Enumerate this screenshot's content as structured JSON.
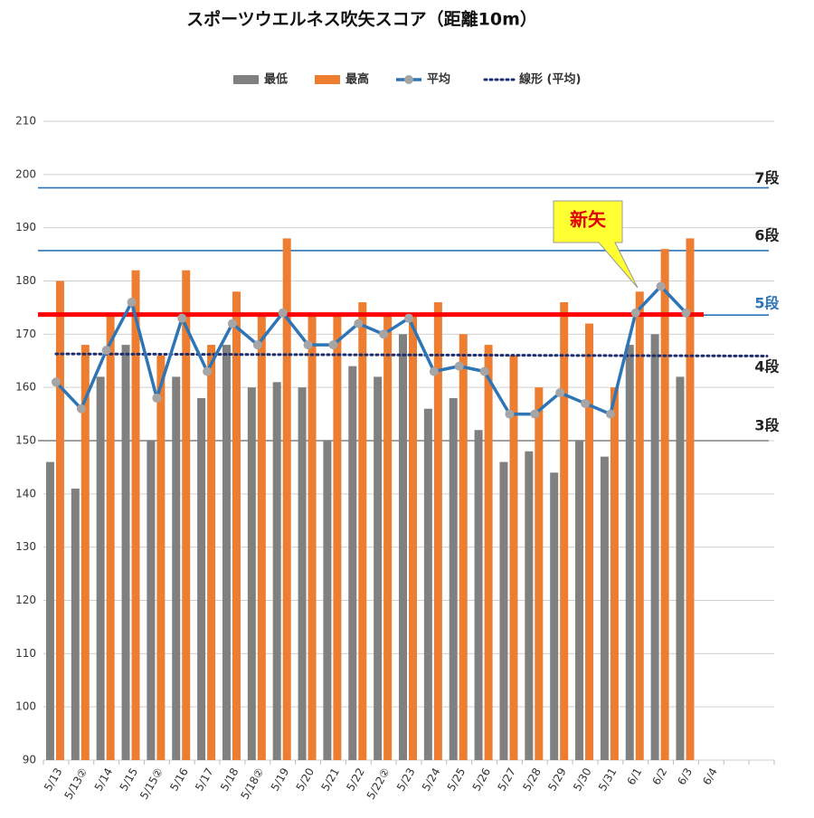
{
  "chart_data": {
    "type": "bar_line",
    "title": "スポーツウエルネス吹矢スコア（距離10m）",
    "categories": [
      "5/13",
      "5/13②",
      "5/14",
      "5/15",
      "5/15②",
      "5/16",
      "5/17",
      "5/18",
      "5/18②",
      "5/19",
      "5/20",
      "5/21",
      "5/22",
      "5/22②",
      "5/23",
      "5/24",
      "5/25",
      "5/26",
      "5/27",
      "5/28",
      "5/29",
      "5/30",
      "5/31",
      "6/1",
      "6/2",
      "6/3",
      "6/4",
      null,
      null
    ],
    "series": [
      {
        "name": "最低",
        "kind": "bar",
        "color": "#808080",
        "values": [
          146,
          141,
          162,
          168,
          150,
          162,
          158,
          168,
          160,
          161,
          160,
          150,
          164,
          162,
          170,
          156,
          158,
          152,
          146,
          148,
          144,
          150,
          147,
          168,
          170,
          162,
          null,
          null,
          null
        ]
      },
      {
        "name": "最高",
        "kind": "bar",
        "color": "#ed7d31",
        "values": [
          180,
          168,
          174,
          182,
          166,
          182,
          168,
          178,
          174,
          188,
          174,
          174,
          176,
          174,
          174,
          176,
          170,
          168,
          166,
          160,
          176,
          172,
          160,
          178,
          186,
          188,
          null,
          null,
          null
        ]
      },
      {
        "name": "平均",
        "kind": "line",
        "color": "#2e75b6",
        "marker_color": "#a5a5a5",
        "values": [
          161,
          156,
          167,
          176,
          158,
          173,
          163,
          172,
          168,
          174,
          168,
          168,
          172,
          170,
          173,
          163,
          164,
          163,
          155,
          155,
          159,
          157,
          155,
          174,
          179,
          174,
          null,
          null,
          null
        ]
      }
    ],
    "trend": {
      "name": "線形 (平均)",
      "color": "#1f2f6e",
      "values": [
        166.3,
        165.9
      ]
    },
    "reference_lines": [
      {
        "label": "7段",
        "value": 197.5,
        "color": "#2e75b6",
        "label_color": "#222222",
        "line": true
      },
      {
        "label": "6段",
        "value": 185.7,
        "color": "#2e75b6",
        "label_color": "#222222",
        "line": true
      },
      {
        "label": "5段",
        "value": 173.6,
        "color": "#2e75b6",
        "label_color": "#2e75b6",
        "line": true
      },
      {
        "label": "4段",
        "value": 163.8,
        "color": "#2e75b6",
        "label_color": "#222222",
        "line": false
      },
      {
        "label": "3段",
        "value": 150,
        "color": "#808080",
        "label_color": "#222222",
        "line": true
      }
    ],
    "highlight_line": {
      "value": 173.7,
      "color": "#ff0000"
    },
    "annotations": [
      {
        "text": "新矢"
      }
    ],
    "ylim": [
      90,
      210
    ],
    "yticks": [
      90,
      100,
      110,
      120,
      130,
      140,
      150,
      160,
      170,
      180,
      190,
      200,
      210
    ],
    "grid": true
  }
}
